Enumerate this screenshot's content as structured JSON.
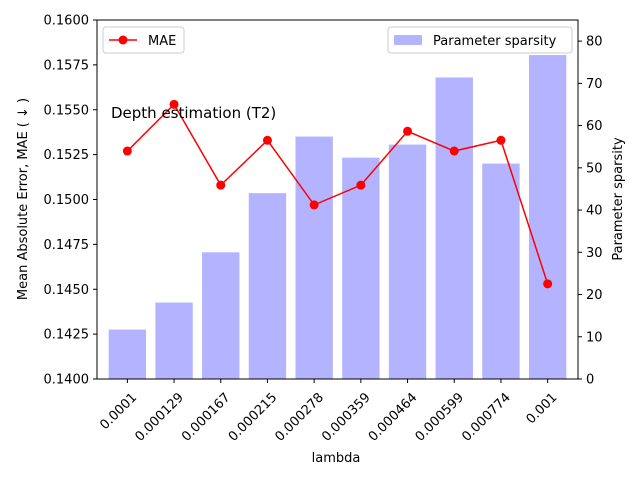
{
  "chart_data": {
    "type": "bar+line",
    "categories": [
      "0.0001",
      "0.000129",
      "0.000167",
      "0.000215",
      "0.000278",
      "0.000359",
      "0.000464",
      "0.000599",
      "0.000774",
      "0.001"
    ],
    "xlabel": "lambda",
    "left_axis": {
      "label": "Mean Absolute Error, MAE ( ↓ )",
      "lim": [
        0.14,
        0.16
      ],
      "ticks": [
        "0.1400",
        "0.1425",
        "0.1450",
        "0.1475",
        "0.1500",
        "0.1525",
        "0.1550",
        "0.1575",
        "0.1600"
      ]
    },
    "right_axis": {
      "label": "Parameter sparsity",
      "lim": [
        0,
        85
      ],
      "ticks": [
        "0",
        "10",
        "20",
        "30",
        "40",
        "50",
        "60",
        "70",
        "80"
      ]
    },
    "series": [
      {
        "name": "MAE",
        "kind": "line",
        "axis": "left",
        "color": "#ff0000",
        "values": [
          0.1527,
          0.1553,
          0.1508,
          0.1533,
          0.1497,
          0.1508,
          0.1538,
          0.1527,
          0.1533,
          0.1453
        ]
      },
      {
        "name": "Parameter sparsity",
        "kind": "bar",
        "axis": "right",
        "color": "#b3b3ff",
        "values": [
          11.7,
          18.1,
          30.0,
          44.0,
          57.4,
          52.4,
          55.5,
          71.4,
          51.0,
          76.7
        ]
      }
    ],
    "annotation": "Depth estimation (T2)",
    "legends": [
      {
        "placement": "upper-left",
        "entries": [
          "MAE"
        ]
      },
      {
        "placement": "upper-right",
        "entries": [
          "Parameter sparsity"
        ]
      }
    ]
  }
}
